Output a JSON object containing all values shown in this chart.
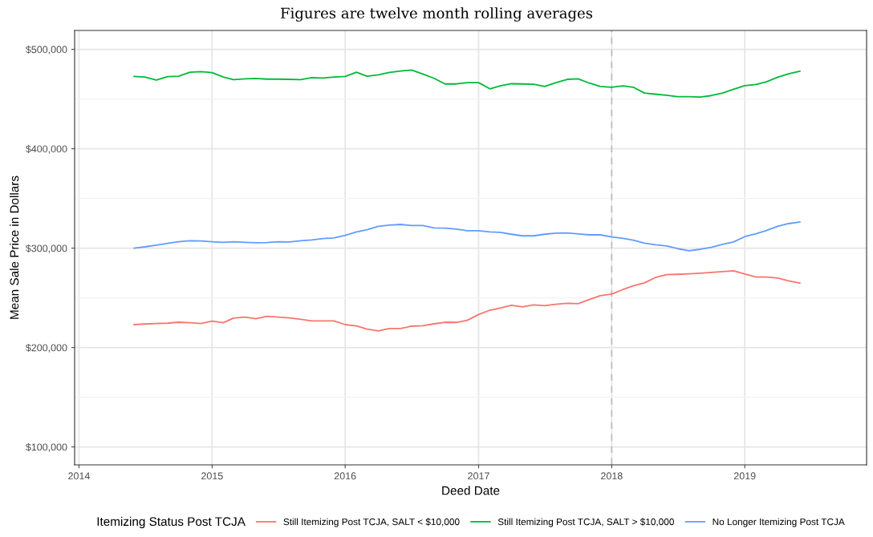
{
  "chart_data": {
    "type": "line",
    "title": "Figures are twelve month rolling averages",
    "xlabel": "Deed Date",
    "ylabel": "Mean Sale Price in Dollars",
    "legend_title": "Itemizing Status Post TCJA",
    "x": [
      "2014-06",
      "2014-07",
      "2014-08",
      "2014-09",
      "2014-10",
      "2014-11",
      "2014-12",
      "2015-01",
      "2015-02",
      "2015-03",
      "2015-04",
      "2015-05",
      "2015-06",
      "2015-07",
      "2015-08",
      "2015-09",
      "2015-10",
      "2015-11",
      "2015-12",
      "2016-01",
      "2016-02",
      "2016-03",
      "2016-04",
      "2016-05",
      "2016-06",
      "2016-07",
      "2016-08",
      "2016-09",
      "2016-10",
      "2016-11",
      "2016-12",
      "2017-01",
      "2017-02",
      "2017-03",
      "2017-04",
      "2017-05",
      "2017-06",
      "2017-07",
      "2017-08",
      "2017-09",
      "2017-10",
      "2017-11",
      "2017-12",
      "2018-01",
      "2018-02",
      "2018-03",
      "2018-04",
      "2018-05",
      "2018-06",
      "2018-07",
      "2018-08",
      "2018-09",
      "2018-10",
      "2018-11",
      "2018-12",
      "2019-01",
      "2019-02",
      "2019-03",
      "2019-04",
      "2019-05",
      "2019-06"
    ],
    "series": [
      {
        "name": "Still Itemizing Post TCJA, SALT < $10,000",
        "color": "#f8766d",
        "values": [
          223100,
          223700,
          224200,
          224500,
          225500,
          225000,
          224200,
          226600,
          225000,
          229600,
          230600,
          229000,
          231500,
          230600,
          229800,
          228500,
          226900,
          226900,
          226900,
          223100,
          221800,
          218600,
          216700,
          219100,
          219100,
          221500,
          222000,
          223900,
          225500,
          225300,
          227400,
          233300,
          237600,
          239800,
          242500,
          240900,
          243000,
          242200,
          243500,
          244600,
          244100,
          248400,
          252200,
          253800,
          258400,
          262100,
          265100,
          270500,
          273400,
          273700,
          274200,
          274800,
          275600,
          276400,
          277200,
          273900,
          271000,
          271000,
          269900,
          267200,
          264800
        ]
      },
      {
        "name": "Still Itemizing Post TCJA, SALT > $10,000",
        "color": "#00ba38",
        "values": [
          472700,
          472200,
          469200,
          472500,
          473000,
          477000,
          477600,
          476500,
          472200,
          469500,
          470300,
          470800,
          470000,
          470000,
          469800,
          469500,
          471600,
          471100,
          472200,
          472700,
          477000,
          473000,
          474400,
          476800,
          478100,
          479200,
          475200,
          470800,
          465200,
          465200,
          466500,
          466500,
          460300,
          463300,
          465400,
          465200,
          464900,
          462700,
          466500,
          469800,
          470300,
          466000,
          462700,
          461900,
          463300,
          461900,
          456000,
          454900,
          453800,
          452400,
          452400,
          451900,
          453500,
          456000,
          459800,
          463500,
          464600,
          467300,
          471900,
          475400,
          478100
        ]
      },
      {
        "name": "No Longer Itemizing Post TCJA",
        "color": "#619cff",
        "values": [
          300000,
          301300,
          303000,
          304800,
          306500,
          307500,
          307300,
          306500,
          305900,
          306500,
          305900,
          305400,
          305600,
          306500,
          306200,
          307500,
          308300,
          309700,
          310200,
          312900,
          316400,
          318500,
          322000,
          323100,
          323900,
          322800,
          322800,
          320400,
          320200,
          319100,
          317500,
          317500,
          316400,
          315900,
          314000,
          312400,
          312400,
          314000,
          315100,
          315300,
          314300,
          313400,
          313400,
          311300,
          309900,
          308100,
          305100,
          303500,
          302200,
          299500,
          297300,
          298900,
          300800,
          303800,
          306200,
          311600,
          314500,
          317700,
          322000,
          324700,
          326300
        ]
      }
    ],
    "xlim": [
      "2013-12-20",
      "2019-12-01"
    ],
    "xticks": [
      {
        "value": "2014-01-01",
        "label": "2014"
      },
      {
        "value": "2015-01-01",
        "label": "2015"
      },
      {
        "value": "2016-01-01",
        "label": "2016"
      },
      {
        "value": "2017-01-01",
        "label": "2017"
      },
      {
        "value": "2018-01-01",
        "label": "2018"
      },
      {
        "value": "2019-01-01",
        "label": "2019"
      }
    ],
    "ylim": [
      82000,
      519000
    ],
    "yticks": [
      {
        "value": 100000,
        "label": "$100,000"
      },
      {
        "value": 150000,
        "label": null
      },
      {
        "value": 200000,
        "label": "$200,000"
      },
      {
        "value": 250000,
        "label": null
      },
      {
        "value": 300000,
        "label": "$300,000"
      },
      {
        "value": 350000,
        "label": null
      },
      {
        "value": 400000,
        "label": "$400,000"
      },
      {
        "value": 450000,
        "label": null
      },
      {
        "value": 500000,
        "label": "$500,000"
      }
    ],
    "ref_lines": [
      {
        "axis": "x",
        "value": "2018-01-01",
        "label": null,
        "color": "#bdbdbd",
        "line_style": "dashed"
      }
    ],
    "grid": true,
    "legend": "bottom",
    "marker": "none",
    "line_style": "solid"
  }
}
